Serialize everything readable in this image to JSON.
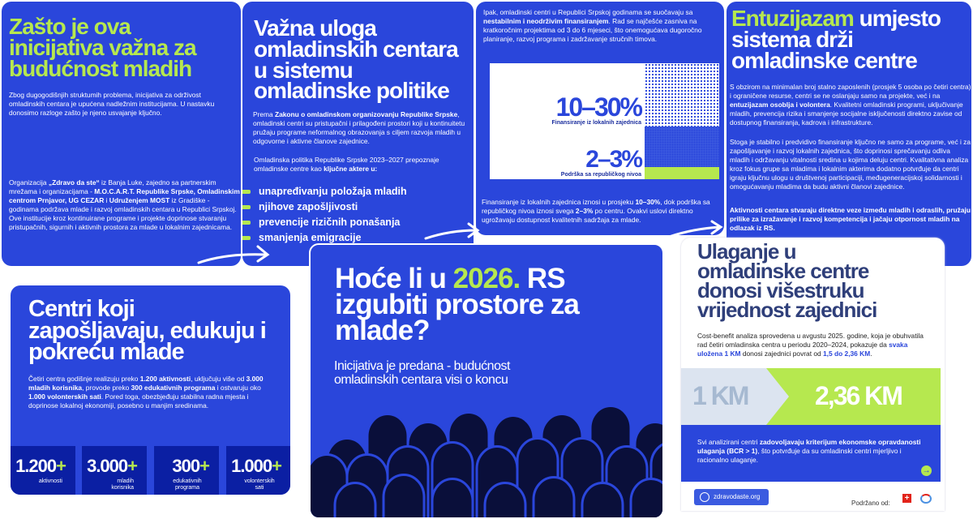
{
  "colors": {
    "blue": "#2A46DB",
    "lime": "#B6E84F",
    "navy": "#0B1FA3",
    "slate": "#2F3F7A"
  },
  "card1": {
    "title": "Zašto je ova inicijativa važna za budućnost mladih",
    "intro": [
      {
        "t": "Zbog dugogodišnjih struktumih problema, inicijativa za održivost omladinskih centara je upućena nadležnim institucijama. U nastavku donosimo razloge zašto je njeno usvajanje ključno."
      }
    ],
    "body": [
      {
        "t": "Organizacija "
      },
      {
        "t": "„Zdravo da ste“",
        "b": true
      },
      {
        "t": " iz Banja Luke, zajedno sa partnerskim mrežama i organizacijama - "
      },
      {
        "t": "M.O.C.A.R.T. Republike Srpske, Omladinskim centrom Prnjavor, UG CEZAR",
        "b": true
      },
      {
        "t": " i "
      },
      {
        "t": "Udruženjem MOST",
        "b": true
      },
      {
        "t": " iz Gradiške - godinama podržava mlade i razvoj omladinskih centara u Republici Srpskoj. Ove institucije kroz kontinuirane programe i projekte doprinose stvaranju pristupačnih, sigurnih i aktivnih prostora za mlade u lokalnim zajednicama."
      }
    ]
  },
  "card2": {
    "title": "Važna uloga omladinskih centara u sistemu omladinske politike",
    "p1": [
      {
        "t": "Prema "
      },
      {
        "t": "Zakonu o omladinskom organizovanju Republike Srpske",
        "b": true
      },
      {
        "t": ", omladinski centri su pristupačni i prilagođeni prostori koji u kontinuitetu pružaju programe neformalnog obrazovanja s ciljem razvoja mladih u odgovorne i aktivne članove zajednice."
      }
    ],
    "p2": [
      {
        "t": "Omladinska politika Republike Srpske 2023–2027 prepoznaje omladinske centre kao "
      },
      {
        "t": "ključne aktere u:",
        "b": true
      }
    ],
    "bullets": [
      "unapređivanju položaja mladih",
      "njihove zapošljivosti",
      "prevencije rizičnih ponašanja",
      "smanjenja emigracije"
    ]
  },
  "card3": {
    "p1": [
      {
        "t": "Ipak, omladinski centri u Republici Srpskoj godinama se suočavaju sa "
      },
      {
        "t": "nestabilnim i neodrživim finansiranjem",
        "b": true
      },
      {
        "t": ". Rad se najčešće zasniva na kratkoročnim projektima od 3 do 6 mjeseci, što onemogućava dugoročno planiranje, razvoj programa i zadržavanje stručnih timova."
      }
    ],
    "stat1": {
      "value": "10–30%",
      "label": "Finansiranje iz lokalnih zajednica"
    },
    "stat2": {
      "value": "2–3%",
      "label": "Podrška sa republičkog nivoa"
    },
    "p2": [
      {
        "t": "Finansiranje iz lokalnih zajednica iznosi u prosjeku "
      },
      {
        "t": "10–30%",
        "b": true
      },
      {
        "t": ", dok podrška sa republičkog nivoa iznosi svega "
      },
      {
        "t": "2–3%",
        "b": true
      },
      {
        "t": " po centru. Ovakvi uslovi direktno ugrožavaju dostupnost kvalitetnih sadržaja za mlade."
      }
    ]
  },
  "card4": {
    "title_accent": "Entuzijazam",
    "title_rest": " umjesto sistema drži omladinske centre",
    "p1": [
      {
        "t": "S obzirom na minimalan broj stalno zaposlenih (prosjek 5 osoba po četiri centra) i ograničene resurse, centri se ne oslanjaju samo na projekte, već i na "
      },
      {
        "t": "entuzijazam osoblja i volontera",
        "b": true
      },
      {
        "t": ". Kvalitetni omladinski programi, uključivanje mladih, prevencija rizika i smanjenje socijalne isključenosti direktno zavise od dostupnog finansiranja, kadrova i infrastrukture."
      }
    ],
    "p2": [
      {
        "t": "Stoga je stabilno i predvidivo finansiranje ključno ne samo za programe, već i za zapošljavanje i razvoj lokalnih zajednica, što doprinosi sprečavanju odliva mladih i održavanju vitalnosti sredina u kojima deluju centri. Kvalitativna analiza kroz fokus grupe sa mladima i lokalnim akterima dodatno potvrđuje da centri igraju ključnu ulogu u društvenoj participaciji, međugeneracijskoj solidarnosti i omogućavanju mladima da budu aktivni članovi zajednice."
      }
    ],
    "p3": [
      {
        "t": "Aktivnosti centara stvaraju direktne veze između mladih i odraslih, pružaju prilike za izražavanje i razvoj kompetencija i jačaju otpornost mladih na odlazak iz RS.",
        "b": true
      }
    ]
  },
  "card5": {
    "title": "Centri koji zapošljavaju, edukuju i pokreću mlade",
    "p1": [
      {
        "t": "Četiri centra godišnje realizuju preko "
      },
      {
        "t": "1.200 aktivnosti",
        "b": true
      },
      {
        "t": ", uključuju više od "
      },
      {
        "t": "3.000 mladih korisnika",
        "b": true
      },
      {
        "t": ", provode preko "
      },
      {
        "t": "300 edukativnih programa",
        "b": true
      },
      {
        "t": " i ostvaruju oko "
      },
      {
        "t": "1.000 volonterskih sati",
        "b": true
      },
      {
        "t": ". Pored toga, obezbjeđuju stabilna radna mjesta i doprinose lokalnoj ekonomiji, posebno u manjim sredinama."
      }
    ],
    "stats": [
      {
        "value": "1.200",
        "plus": "+",
        "label": "aktivnosti"
      },
      {
        "value": "3.000",
        "plus": "+",
        "label": "mladih korisnika"
      },
      {
        "value": "300",
        "plus": "+",
        "label": "edukativnih programa"
      },
      {
        "value": "1.000",
        "plus": "+",
        "label": "volonterskih sati"
      }
    ]
  },
  "card6": {
    "title_a": "Hoće li u ",
    "title_accent": "2026.",
    "title_b": " RS izgubiti prostore za mlade?",
    "subtitle": "Inicijativa je predana - budućnost omladinskih centara visi o koncu"
  },
  "card7": {
    "title": "Ulaganje u omladinske centre donosi višestruku vrijednost zajednici",
    "p1": [
      {
        "t": "Cost-benefit analiza sprovedena u avgustu 2025. godine, koja je obuhvatila rad četiri omladinska centra u periodu 2020–2024, pokazuje da "
      },
      {
        "t": "svaka uložena 1 KM",
        "c": true
      },
      {
        "t": " donosi zajednici povrat od "
      },
      {
        "t": "1,5 do 2,36 KM",
        "c": true
      },
      {
        "t": "."
      }
    ],
    "from": "1 KM",
    "to": "2,36 KM",
    "p2": [
      {
        "t": "Svi analizirani centri "
      },
      {
        "t": "zadovoljavaju kriterijum ekonomske opravdanosti ulaganja (BCR > 1)",
        "b": true
      },
      {
        "t": ", što potvrđuje da su omladinski centri mjerljivo i racionalno ulaganje."
      }
    ],
    "website": "zdravodaste.org",
    "supported_by": "Podržano od:"
  }
}
